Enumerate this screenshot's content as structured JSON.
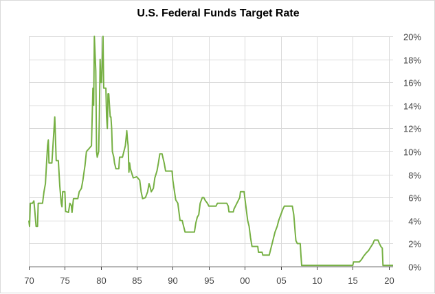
{
  "colors": {
    "line": "#76b043",
    "grid": "#d9d9d9",
    "axis": "#404040",
    "background": "#ffffff"
  },
  "chart_data": {
    "type": "line",
    "title": "U.S. Federal Funds Target Rate",
    "xlabel": "",
    "ylabel": "",
    "xlim": [
      1971,
      2021.6
    ],
    "ylim": [
      0,
      20
    ],
    "grid": true,
    "legend": "none",
    "y_axis_side": "right",
    "x_ticks": [
      {
        "value": 1971,
        "label": "70"
      },
      {
        "value": 1976,
        "label": "75"
      },
      {
        "value": 1981,
        "label": "80"
      },
      {
        "value": 1986,
        "label": "85"
      },
      {
        "value": 1991,
        "label": "90"
      },
      {
        "value": 1996,
        "label": "95"
      },
      {
        "value": 2001,
        "label": "00"
      },
      {
        "value": 2006,
        "label": "05"
      },
      {
        "value": 2011,
        "label": "10"
      },
      {
        "value": 2016,
        "label": "15"
      },
      {
        "value": 2021,
        "label": "20"
      }
    ],
    "y_ticks": [
      {
        "value": 0,
        "label": "0%"
      },
      {
        "value": 2,
        "label": "2%"
      },
      {
        "value": 4,
        "label": "4%"
      },
      {
        "value": 6,
        "label": "6%"
      },
      {
        "value": 8,
        "label": "8%"
      },
      {
        "value": 10,
        "label": "10%"
      },
      {
        "value": 12,
        "label": "12%"
      },
      {
        "value": 14,
        "label": "14%"
      },
      {
        "value": 16,
        "label": "16%"
      },
      {
        "value": 18,
        "label": "18%"
      },
      {
        "value": 20,
        "label": "20%"
      }
    ],
    "series": [
      {
        "name": "Federal Funds Target Rate",
        "points": [
          [
            1971.0,
            4.0
          ],
          [
            1971.1,
            3.5
          ],
          [
            1971.2,
            5.5
          ],
          [
            1971.5,
            5.5
          ],
          [
            1971.7,
            5.7
          ],
          [
            1971.8,
            5.0
          ],
          [
            1972.0,
            3.5
          ],
          [
            1972.2,
            3.5
          ],
          [
            1972.3,
            5.5
          ],
          [
            1972.9,
            5.5
          ],
          [
            1973.1,
            6.5
          ],
          [
            1973.3,
            7.2
          ],
          [
            1973.6,
            10.5
          ],
          [
            1973.7,
            11.0
          ],
          [
            1973.8,
            9.0
          ],
          [
            1974.2,
            9.0
          ],
          [
            1974.4,
            11.0
          ],
          [
            1974.6,
            13.0
          ],
          [
            1974.7,
            11.0
          ],
          [
            1974.8,
            9.2
          ],
          [
            1975.1,
            9.2
          ],
          [
            1975.3,
            7.0
          ],
          [
            1975.5,
            5.5
          ],
          [
            1975.6,
            5.2
          ],
          [
            1975.7,
            6.5
          ],
          [
            1976.0,
            6.5
          ],
          [
            1976.1,
            4.8
          ],
          [
            1976.5,
            4.7
          ],
          [
            1976.7,
            5.5
          ],
          [
            1976.9,
            5.3
          ],
          [
            1977.0,
            4.7
          ],
          [
            1977.2,
            5.9
          ],
          [
            1977.8,
            5.9
          ],
          [
            1978.0,
            6.5
          ],
          [
            1978.3,
            6.8
          ],
          [
            1978.5,
            7.5
          ],
          [
            1978.8,
            8.8
          ],
          [
            1979.0,
            10.0
          ],
          [
            1979.3,
            10.2
          ],
          [
            1979.7,
            10.5
          ],
          [
            1979.9,
            15.5
          ],
          [
            1980.0,
            14.0
          ],
          [
            1980.1,
            20.0
          ],
          [
            1980.3,
            17.0
          ],
          [
            1980.4,
            10.0
          ],
          [
            1980.5,
            9.5
          ],
          [
            1980.7,
            10.0
          ],
          [
            1980.8,
            13.0
          ],
          [
            1980.9,
            18.0
          ],
          [
            1981.0,
            16.0
          ],
          [
            1981.1,
            16.0
          ],
          [
            1981.3,
            20.0
          ],
          [
            1981.4,
            15.5
          ],
          [
            1981.7,
            15.5
          ],
          [
            1981.8,
            13.0
          ],
          [
            1981.9,
            12.0
          ],
          [
            1982.0,
            15.0
          ],
          [
            1982.1,
            15.0
          ],
          [
            1982.2,
            14.0
          ],
          [
            1982.3,
            13.0
          ],
          [
            1982.4,
            13.0
          ],
          [
            1982.5,
            12.0
          ],
          [
            1982.6,
            10.0
          ],
          [
            1982.8,
            9.5
          ],
          [
            1982.9,
            9.0
          ],
          [
            1983.1,
            8.5
          ],
          [
            1983.5,
            8.5
          ],
          [
            1983.6,
            9.5
          ],
          [
            1984.0,
            9.5
          ],
          [
            1984.2,
            10.0
          ],
          [
            1984.4,
            10.5
          ],
          [
            1984.6,
            11.8
          ],
          [
            1984.7,
            11.0
          ],
          [
            1984.8,
            10.5
          ],
          [
            1984.9,
            8.2
          ],
          [
            1985.0,
            9.0
          ],
          [
            1985.1,
            8.5
          ],
          [
            1985.5,
            7.7
          ],
          [
            1986.0,
            7.8
          ],
          [
            1986.4,
            7.5
          ],
          [
            1986.6,
            6.5
          ],
          [
            1986.8,
            5.9
          ],
          [
            1987.2,
            6.0
          ],
          [
            1987.5,
            6.5
          ],
          [
            1987.7,
            7.2
          ],
          [
            1987.9,
            6.8
          ],
          [
            1988.0,
            6.5
          ],
          [
            1988.3,
            6.8
          ],
          [
            1988.5,
            7.7
          ],
          [
            1988.8,
            8.3
          ],
          [
            1989.0,
            9.0
          ],
          [
            1989.2,
            9.8
          ],
          [
            1989.5,
            9.8
          ],
          [
            1989.8,
            9.0
          ],
          [
            1990.0,
            8.3
          ],
          [
            1990.9,
            8.3
          ],
          [
            1991.0,
            7.5
          ],
          [
            1991.4,
            5.8
          ],
          [
            1991.7,
            5.5
          ],
          [
            1992.0,
            4.0
          ],
          [
            1992.3,
            4.0
          ],
          [
            1992.5,
            3.5
          ],
          [
            1992.7,
            3.0
          ],
          [
            1994.0,
            3.0
          ],
          [
            1994.2,
            3.8
          ],
          [
            1994.4,
            4.3
          ],
          [
            1994.6,
            4.5
          ],
          [
            1994.8,
            5.5
          ],
          [
            1995.1,
            6.0
          ],
          [
            1995.3,
            6.0
          ],
          [
            1995.5,
            5.75
          ],
          [
            1995.8,
            5.5
          ],
          [
            1996.0,
            5.25
          ],
          [
            1997.0,
            5.25
          ],
          [
            1997.2,
            5.5
          ],
          [
            1998.5,
            5.5
          ],
          [
            1998.7,
            5.25
          ],
          [
            1998.8,
            4.75
          ],
          [
            1999.4,
            4.75
          ],
          [
            1999.5,
            5.0
          ],
          [
            1999.7,
            5.25
          ],
          [
            1999.9,
            5.5
          ],
          [
            2000.1,
            5.75
          ],
          [
            2000.3,
            6.0
          ],
          [
            2000.4,
            6.5
          ],
          [
            2000.9,
            6.5
          ],
          [
            2001.0,
            6.0
          ],
          [
            2001.2,
            5.0
          ],
          [
            2001.4,
            4.0
          ],
          [
            2001.6,
            3.5
          ],
          [
            2001.8,
            2.5
          ],
          [
            2002.0,
            1.75
          ],
          [
            2002.8,
            1.75
          ],
          [
            2002.9,
            1.25
          ],
          [
            2003.4,
            1.25
          ],
          [
            2003.5,
            1.0
          ],
          [
            2004.4,
            1.0
          ],
          [
            2004.6,
            1.5
          ],
          [
            2004.8,
            2.0
          ],
          [
            2005.0,
            2.5
          ],
          [
            2005.2,
            3.0
          ],
          [
            2005.5,
            3.5
          ],
          [
            2005.7,
            4.0
          ],
          [
            2006.0,
            4.5
          ],
          [
            2006.3,
            5.0
          ],
          [
            2006.5,
            5.25
          ],
          [
            2007.6,
            5.25
          ],
          [
            2007.8,
            4.5
          ],
          [
            2008.0,
            3.0
          ],
          [
            2008.1,
            2.25
          ],
          [
            2008.3,
            2.0
          ],
          [
            2008.7,
            2.0
          ],
          [
            2008.8,
            1.0
          ],
          [
            2008.9,
            0.1
          ],
          [
            2016.0,
            0.1
          ],
          [
            2016.1,
            0.4
          ],
          [
            2016.9,
            0.4
          ],
          [
            2017.2,
            0.6
          ],
          [
            2017.5,
            0.9
          ],
          [
            2017.9,
            1.2
          ],
          [
            2018.2,
            1.4
          ],
          [
            2018.5,
            1.7
          ],
          [
            2018.8,
            2.0
          ],
          [
            2019.0,
            2.3
          ],
          [
            2019.5,
            2.3
          ],
          [
            2019.7,
            2.0
          ],
          [
            2019.9,
            1.75
          ],
          [
            2020.1,
            1.6
          ],
          [
            2020.2,
            0.1
          ],
          [
            2021.6,
            0.1
          ]
        ]
      }
    ]
  }
}
